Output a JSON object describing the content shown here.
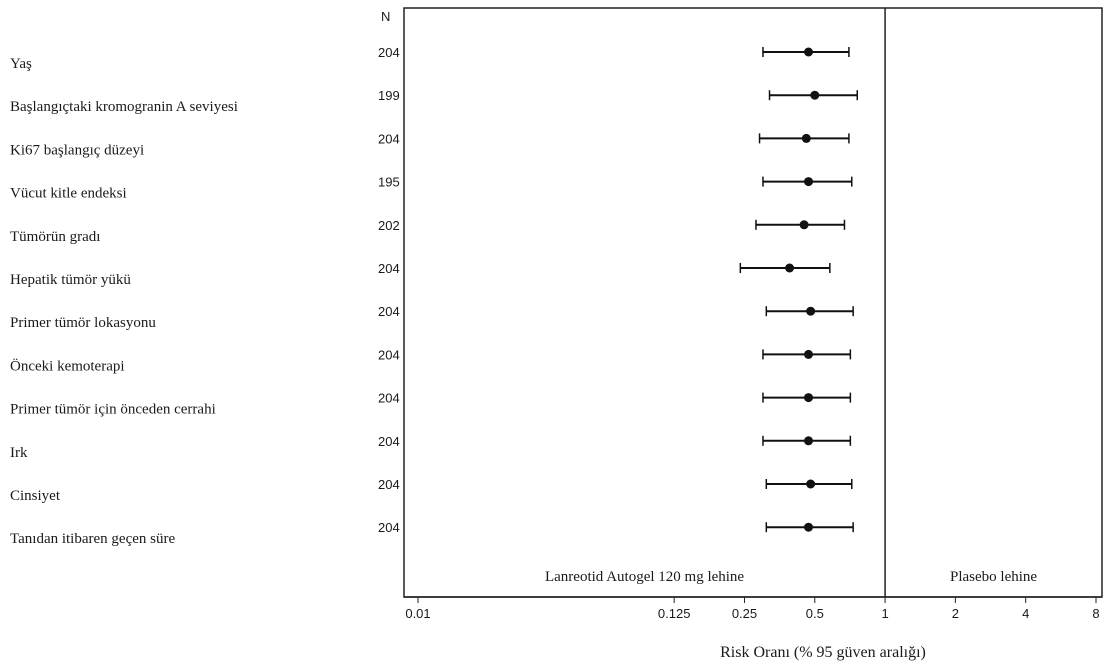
{
  "chart_data": {
    "type": "forest",
    "n_header": "N",
    "xlabel": "Risk Oranı (% 95 güven aralığı)",
    "x_scale": "log2",
    "xlim": [
      0.01,
      8
    ],
    "x_ticks": [
      {
        "value": 0.01,
        "label": "0.01"
      },
      {
        "value": 0.125,
        "label": "0.125"
      },
      {
        "value": 0.25,
        "label": "0.25"
      },
      {
        "value": 0.5,
        "label": "0.5"
      },
      {
        "value": 1,
        "label": "1"
      },
      {
        "value": 2,
        "label": "2"
      },
      {
        "value": 4,
        "label": "4"
      },
      {
        "value": 8,
        "label": "8"
      }
    ],
    "reference_line": 1,
    "left_region_label": "Lanreotid Autogel 120 mg lehine",
    "right_region_label": "Plasebo lehine",
    "rows": [
      {
        "label": "Yaş",
        "n": "204",
        "estimate": 0.47,
        "lower": 0.3,
        "upper": 0.7
      },
      {
        "label": "Başlangıçtaki kromogranin A seviyesi",
        "n": "199",
        "estimate": 0.5,
        "lower": 0.32,
        "upper": 0.76
      },
      {
        "label": "Ki67 başlangıç düzeyi",
        "n": "204",
        "estimate": 0.46,
        "lower": 0.29,
        "upper": 0.7
      },
      {
        "label": "Vücut kitle endeksi",
        "n": "195",
        "estimate": 0.47,
        "lower": 0.3,
        "upper": 0.72
      },
      {
        "label": "Tümörün gradı",
        "n": "202",
        "estimate": 0.45,
        "lower": 0.28,
        "upper": 0.67
      },
      {
        "label": "Hepatik tümör  yükü",
        "n": "204",
        "estimate": 0.39,
        "lower": 0.24,
        "upper": 0.58
      },
      {
        "label": "Primer tümör lokasyonu",
        "n": "204",
        "estimate": 0.48,
        "lower": 0.31,
        "upper": 0.73
      },
      {
        "label": "Önceki kemoterapi",
        "n": "204",
        "estimate": 0.47,
        "lower": 0.3,
        "upper": 0.71
      },
      {
        "label": "Primer tümör için önceden cerrahi",
        "n": "204",
        "estimate": 0.47,
        "lower": 0.3,
        "upper": 0.71
      },
      {
        "label": "Irk",
        "n": "204",
        "estimate": 0.47,
        "lower": 0.3,
        "upper": 0.71
      },
      {
        "label": "Cinsiyet",
        "n": "204",
        "estimate": 0.48,
        "lower": 0.31,
        "upper": 0.72
      },
      {
        "label": "Tanıdan itibaren geçen süre",
        "n": "204",
        "estimate": 0.47,
        "lower": 0.31,
        "upper": 0.73
      }
    ]
  }
}
